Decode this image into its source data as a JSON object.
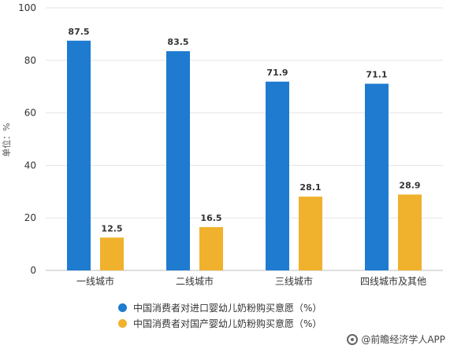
{
  "chart_data": {
    "type": "bar",
    "categories": [
      "一线城市",
      "二线城市",
      "三线城市",
      "四线城市及其他"
    ],
    "series": [
      {
        "name": "中国消费者对进口婴幼儿奶粉购买意愿（%）",
        "values": [
          87.5,
          83.5,
          71.9,
          71.1
        ],
        "color": "#1e7bd0"
      },
      {
        "name": "中国消费者对国产婴幼儿奶粉购买意愿（%）",
        "values": [
          12.5,
          16.5,
          28.1,
          28.9
        ],
        "color": "#f0b12c"
      }
    ],
    "ylabel": "单位：%",
    "ylim": [
      0,
      100
    ],
    "yticks": [
      0,
      20,
      40,
      60,
      80,
      100
    ],
    "grid": true,
    "legend_position": "bottom"
  },
  "source": "@前瞻经济学人APP"
}
